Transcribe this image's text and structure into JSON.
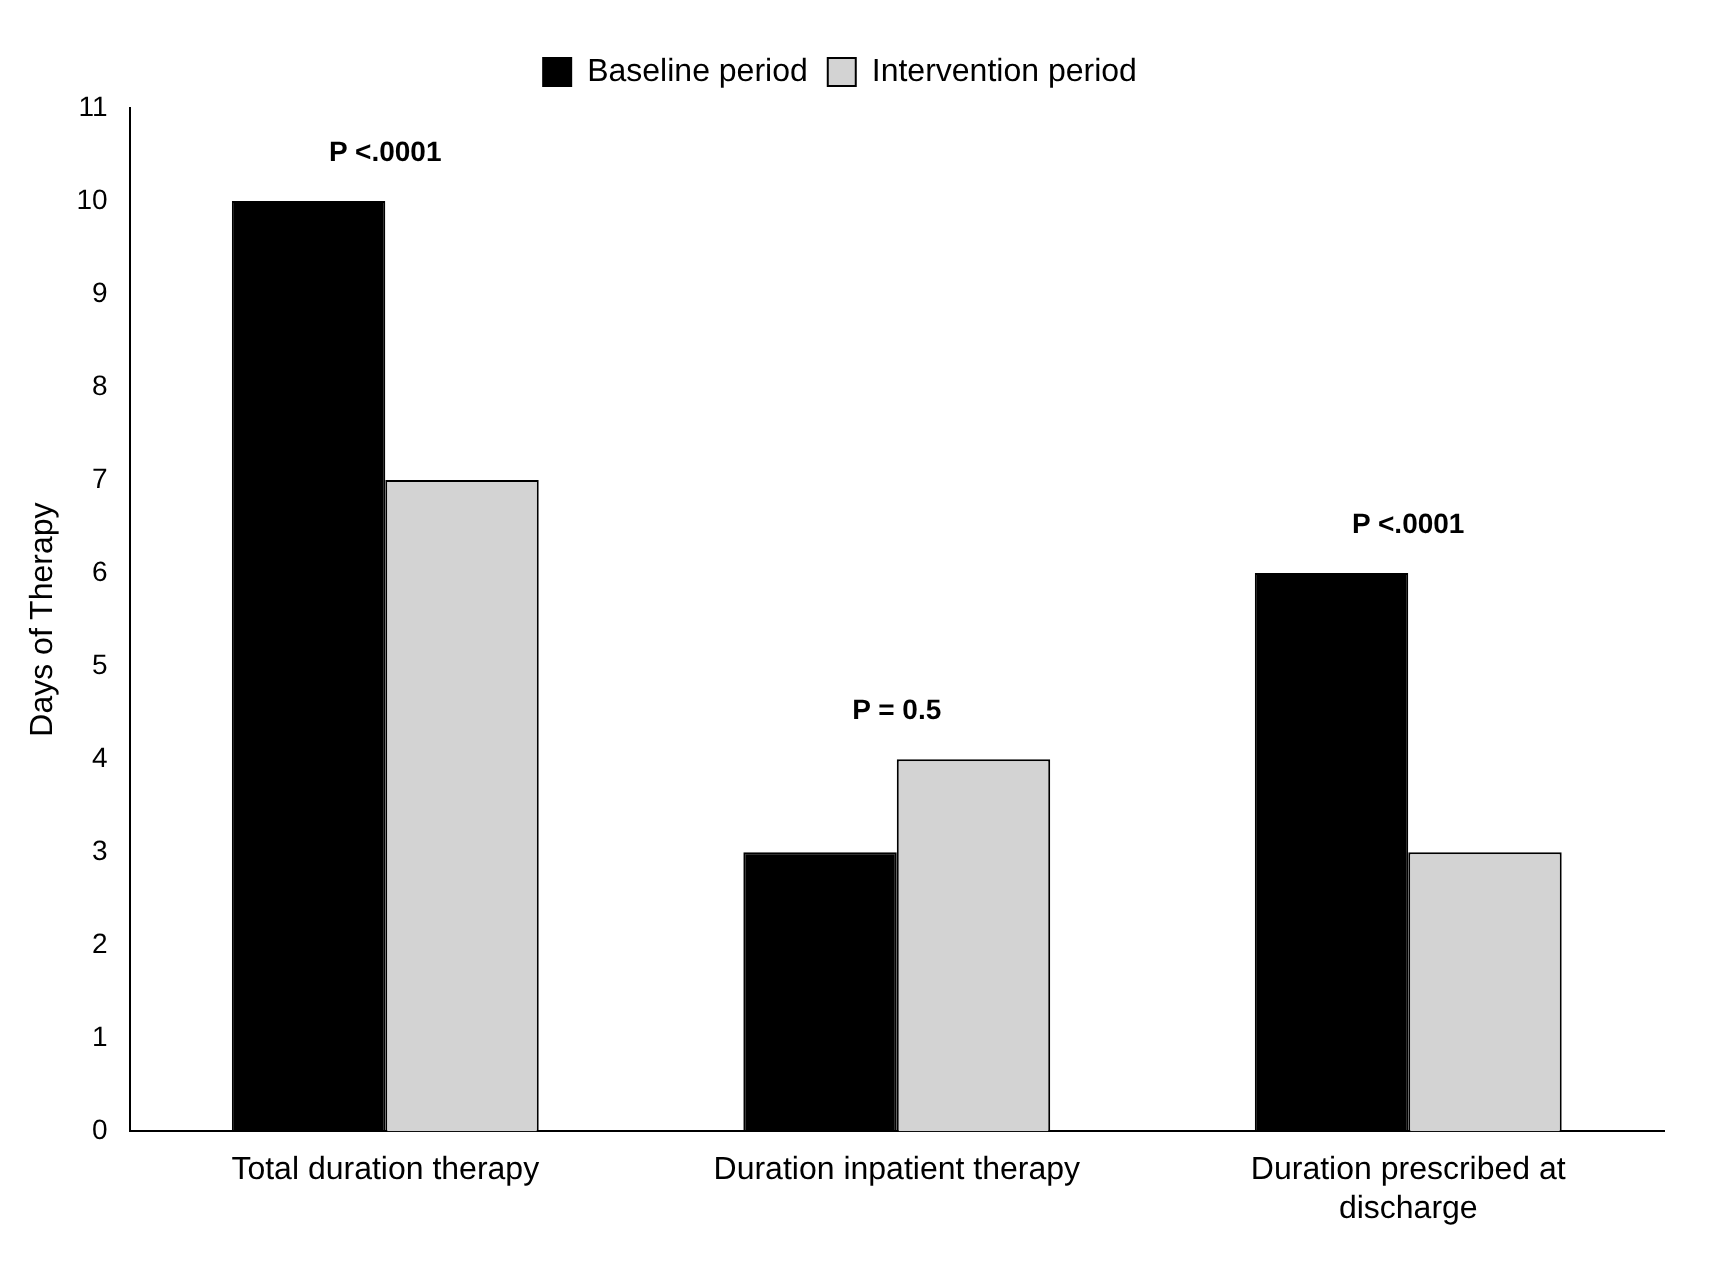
{
  "chart_data": {
    "type": "bar",
    "ylabel": "Days of Therapy",
    "categories": [
      "Total duration therapy",
      "Duration inpatient therapy",
      "Duration prescribed at discharge"
    ],
    "series": [
      {
        "name": "Baseline period",
        "color": "#000000",
        "values": [
          10,
          3,
          6
        ]
      },
      {
        "name": "Intervention period",
        "color": "#d3d3d3",
        "values": [
          7,
          4,
          3
        ]
      }
    ],
    "ylim": [
      0,
      11
    ],
    "yticks": [
      0,
      1,
      2,
      3,
      4,
      5,
      6,
      7,
      8,
      9,
      10,
      11
    ],
    "grid": false,
    "legend": "top",
    "annotations": [
      "P <.0001",
      "P = 0.5",
      "P <.0001"
    ]
  }
}
